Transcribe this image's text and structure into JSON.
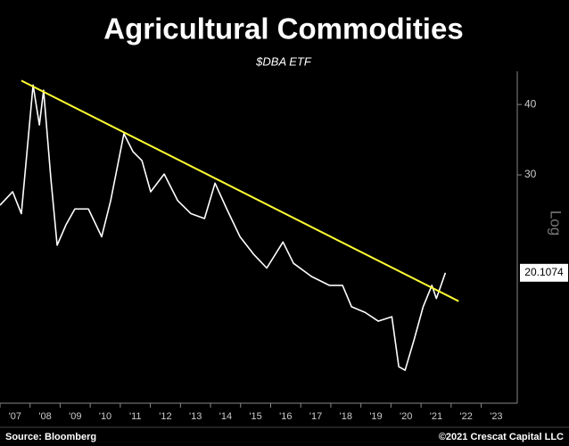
{
  "chart_data": {
    "type": "line",
    "title": "Agricultural Commodities",
    "subtitle": "$DBA ETF",
    "y_axis_label": "Log",
    "source": "Source: Bloomberg",
    "credit": "©2021 Crescat Capital LLC",
    "log_scale": true,
    "grid": false,
    "x": [
      2007.0,
      2007.42,
      2007.71,
      2008.1,
      2008.31,
      2008.45,
      2008.69,
      2008.9,
      2009.2,
      2009.49,
      2009.94,
      2010.38,
      2010.68,
      2011.12,
      2011.42,
      2011.72,
      2012.01,
      2012.46,
      2012.91,
      2013.35,
      2013.8,
      2014.15,
      2014.54,
      2014.98,
      2015.43,
      2015.87,
      2016.41,
      2016.76,
      2017.36,
      2017.95,
      2018.39,
      2018.69,
      2019.14,
      2019.58,
      2020.03,
      2020.26,
      2020.47,
      2020.77,
      2021.07,
      2021.36,
      2021.51,
      2021.81
    ],
    "series": [
      {
        "color": "#ffffff",
        "values": [
          26.5,
          28.0,
          25.6,
          43.3,
          36.8,
          42.4,
          29.6,
          22.5,
          24.5,
          26.1,
          26.1,
          23.3,
          27.0,
          35.5,
          33.0,
          31.8,
          28.0,
          30.1,
          27.0,
          25.6,
          25.1,
          29.0,
          26.1,
          23.3,
          21.7,
          20.5,
          22.8,
          20.9,
          19.8,
          19.1,
          19.1,
          17.5,
          17.1,
          16.5,
          16.8,
          13.7,
          13.5,
          15.3,
          17.5,
          19.1,
          18.1,
          20.1074
        ]
      }
    ],
    "trendline": {
      "color": "#ffff33",
      "x": [
        2007.71,
        2022.25
      ],
      "values": [
        44.1,
        17.9
      ]
    },
    "xlim": [
      2007,
      2024.2
    ],
    "xticks": [
      {
        "value": 2007,
        "label": "'07"
      },
      {
        "value": 2008,
        "label": "'08"
      },
      {
        "value": 2009,
        "label": "'09"
      },
      {
        "value": 2010,
        "label": "'10"
      },
      {
        "value": 2011,
        "label": "'11"
      },
      {
        "value": 2012,
        "label": "'12"
      },
      {
        "value": 2013,
        "label": "'13"
      },
      {
        "value": 2014,
        "label": "'14"
      },
      {
        "value": 2015,
        "label": "'15"
      },
      {
        "value": 2016,
        "label": "'16"
      },
      {
        "value": 2017,
        "label": "'17"
      },
      {
        "value": 2018,
        "label": "'18"
      },
      {
        "value": 2019,
        "label": "'19"
      },
      {
        "value": 2020,
        "label": "'20"
      },
      {
        "value": 2021,
        "label": "'21"
      },
      {
        "value": 2022,
        "label": "'22"
      },
      {
        "value": 2023,
        "label": "'23"
      }
    ],
    "ylim": [
      11.8,
      45.8
    ],
    "yticks": [
      30,
      40
    ]
  }
}
